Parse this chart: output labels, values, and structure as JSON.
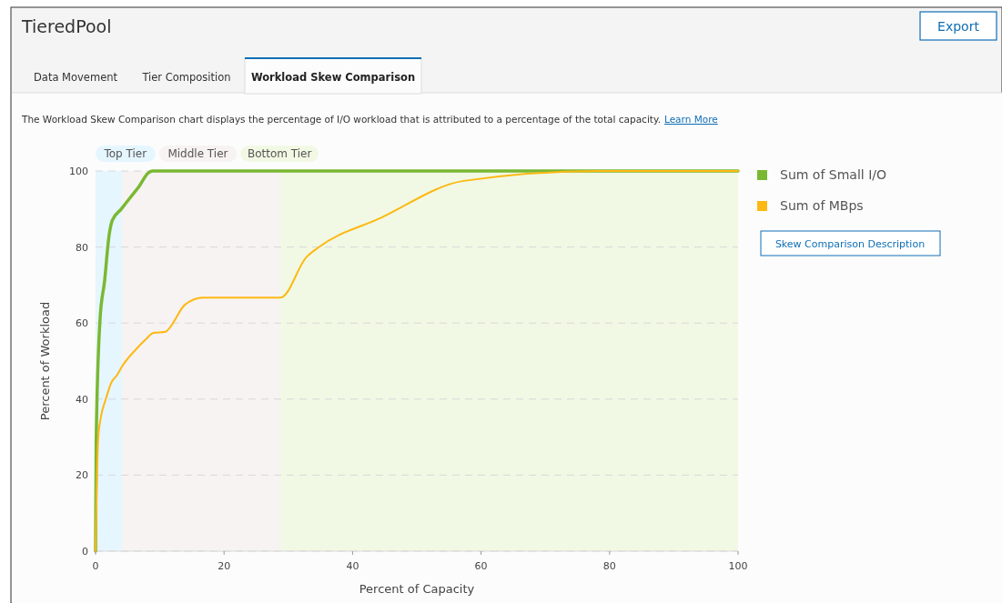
{
  "chart_data": {
    "type": "line",
    "xlabel": "Percent of Capacity",
    "ylabel": "Percent of Workload",
    "xlim": [
      0,
      100
    ],
    "ylim": [
      0,
      100
    ],
    "xticks": [
      0,
      20,
      40,
      60,
      80,
      100
    ],
    "yticks": [
      0,
      20,
      40,
      60,
      80,
      100
    ],
    "grid": "y",
    "legend": "right",
    "marker": "none",
    "line_style": "solid",
    "bands": [
      {
        "axis": "x",
        "from": 0,
        "to": 4.1,
        "label": "Top Tier",
        "color": "#e5f6ff"
      },
      {
        "axis": "x",
        "from": 4.1,
        "to": 28.8,
        "label": "Middle Tier",
        "color": "#f7f3f2"
      },
      {
        "axis": "x",
        "from": 28.8,
        "to": 100,
        "label": "Bottom Tier",
        "color": "#f1f9e4"
      }
    ],
    "series": [
      {
        "name": "Sum of Small I/O",
        "color": "#7ab833",
        "x": [
          0,
          0.1,
          0.7,
          1.4,
          2.1,
          2.6,
          4.0,
          5.4,
          6.8,
          8.2,
          8.9,
          100
        ],
        "values": [
          0,
          29.4,
          61,
          71,
          83,
          87,
          90,
          93,
          96,
          99.5,
          100,
          100
        ]
      },
      {
        "name": "Sum of MBps",
        "color": "#fdb813",
        "x": [
          0,
          0.4,
          0.8,
          1.6,
          2.5,
          3.3,
          4.2,
          6.4,
          7.8,
          9.0,
          10.9,
          11.6,
          13.9,
          16.7,
          28.8,
          32.8,
          34.6,
          44.3,
          57.3,
          78.5,
          100
        ],
        "values": [
          0,
          29.4,
          35,
          40,
          44.5,
          46.2,
          48.8,
          53.3,
          55.7,
          57.4,
          57.7,
          58.9,
          64.8,
          66.7,
          66.7,
          77.3,
          79.8,
          87.6,
          97.4,
          100,
          100
        ]
      }
    ],
    "annotations": [
      "TieredPool",
      "Export",
      "Data Movement",
      "Tier Composition",
      "Workload Skew Comparison",
      "The Workload Skew Comparison chart displays the percentage of I/O workload that is attributed to a percentage of the total capacity.",
      "Learn More",
      "Skew Comparison Description"
    ]
  }
}
